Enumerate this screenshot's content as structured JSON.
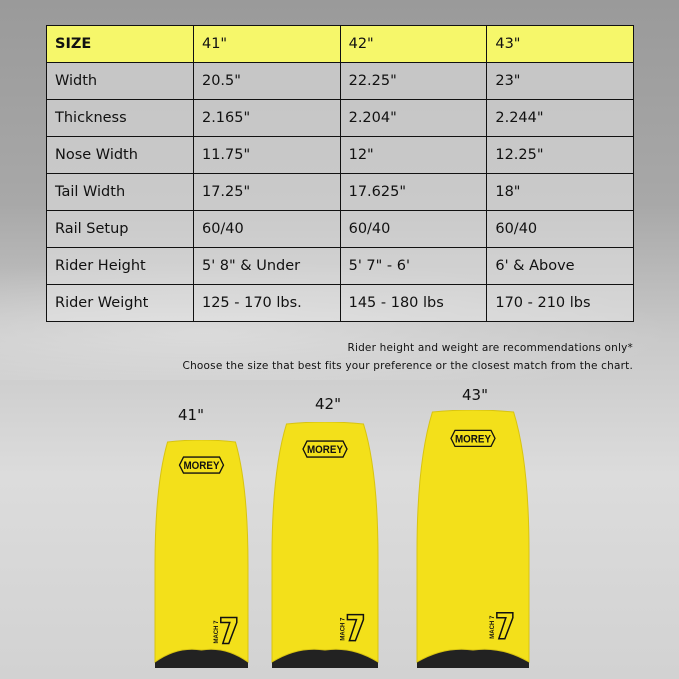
{
  "table": {
    "header": [
      "SIZE",
      "41\"",
      "42\"",
      "43\""
    ],
    "rows": [
      [
        "Width",
        "20.5\"",
        "22.25\"",
        "23\""
      ],
      [
        "Thickness",
        "2.165\"",
        "2.204\"",
        "2.244\""
      ],
      [
        "Nose Width",
        "11.75\"",
        "12\"",
        "12.25\""
      ],
      [
        "Tail Width",
        "17.25\"",
        "17.625\"",
        "18\""
      ],
      [
        "Rail Setup",
        "60/40",
        "60/40",
        "60/40"
      ],
      [
        "Rider Height",
        "5' 8\" & Under",
        "5' 7\" - 6'",
        "6' & Above"
      ],
      [
        "Rider Weight",
        "125 - 170 lbs.",
        "145 - 180 lbs",
        "170 - 210 lbs"
      ]
    ]
  },
  "notes": {
    "line1": "Rider height and weight are recommendations only*",
    "line2": "Choose the size that best fits your preference or the closest match from the chart."
  },
  "boards": [
    {
      "label": "41\"",
      "logo": "MOREY",
      "model": "MACH 7"
    },
    {
      "label": "42\"",
      "logo": "MOREY",
      "model": "MACH 7"
    },
    {
      "label": "43\"",
      "logo": "MOREY",
      "model": "MACH 7"
    }
  ],
  "colors": {
    "header_yellow": "#f6f76a",
    "board_yellow": "#f3e01a",
    "board_bottom": "#222222"
  }
}
